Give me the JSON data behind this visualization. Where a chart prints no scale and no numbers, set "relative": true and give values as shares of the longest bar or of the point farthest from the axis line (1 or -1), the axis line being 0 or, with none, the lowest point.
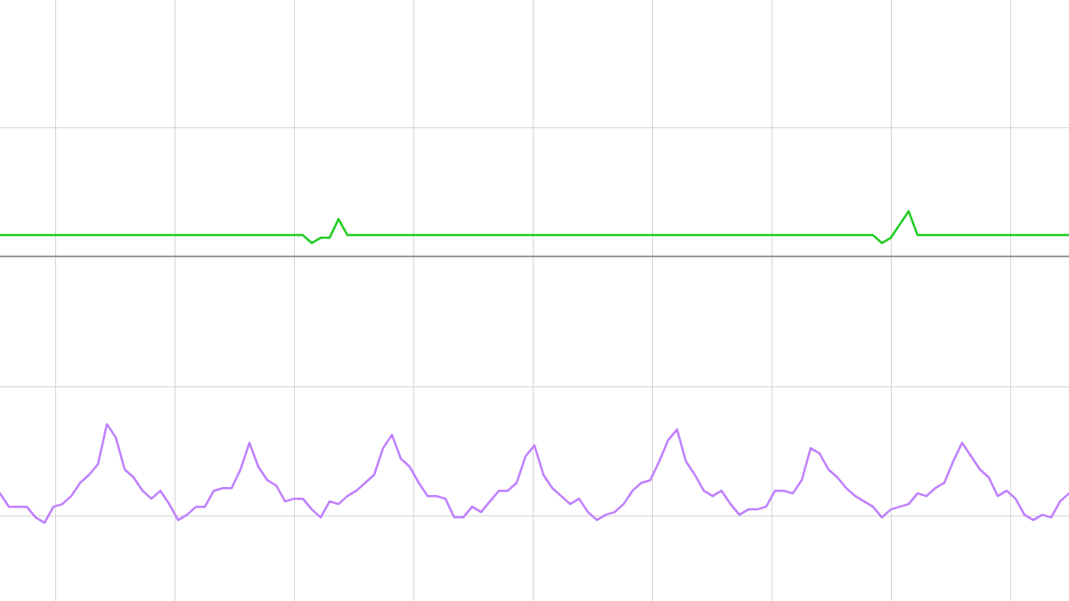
{
  "chart_data": {
    "type": "line",
    "relative": true,
    "grid": true,
    "marker": "none",
    "line_style": "solid",
    "categories": [
      null,
      null,
      null,
      null,
      null,
      null,
      null,
      null,
      null,
      null,
      null,
      null,
      null,
      null,
      null,
      null,
      null,
      null,
      null,
      null,
      null,
      null,
      null,
      null,
      null,
      null,
      null,
      null,
      null,
      null,
      null,
      null,
      null,
      null,
      null,
      null,
      null,
      null,
      null,
      null,
      null,
      null,
      null,
      null,
      null,
      null,
      null,
      null,
      null,
      null,
      null,
      null,
      null,
      null,
      null,
      null,
      null,
      null,
      null,
      null,
      null,
      null,
      null,
      null,
      null,
      null,
      null,
      null,
      null,
      null,
      null,
      null,
      null,
      null,
      null,
      null,
      null,
      null,
      null,
      null,
      null,
      null,
      null,
      null,
      null,
      null,
      null,
      null,
      null,
      null,
      null,
      null,
      null,
      null,
      null,
      null,
      null,
      null,
      null,
      null,
      null,
      null,
      null,
      null,
      null,
      null,
      null,
      null,
      null,
      null,
      null,
      null,
      null,
      null,
      null,
      null,
      null,
      null,
      null,
      null,
      null
    ],
    "series": [
      {
        "color": "#22cc22",
        "values": [
          0.08,
          0.08,
          0.08,
          0.08,
          0.08,
          0.08,
          0.08,
          0.08,
          0.08,
          0.08,
          0.08,
          0.08,
          0.08,
          0.08,
          0.08,
          0.08,
          0.08,
          0.08,
          0.08,
          0.08,
          0.08,
          0.08,
          0.08,
          0.08,
          0.08,
          0.08,
          0.08,
          0.08,
          0.08,
          0.08,
          0.08,
          0.08,
          0.08,
          0.08,
          0.08,
          0.05,
          0.07,
          0.07,
          0.14,
          0.08,
          0.08,
          0.08,
          0.08,
          0.08,
          0.08,
          0.08,
          0.08,
          0.08,
          0.08,
          0.08,
          0.08,
          0.08,
          0.08,
          0.08,
          0.08,
          0.08,
          0.08,
          0.08,
          0.08,
          0.08,
          0.08,
          0.08,
          0.08,
          0.08,
          0.08,
          0.08,
          0.08,
          0.08,
          0.08,
          0.08,
          0.08,
          0.08,
          0.08,
          0.08,
          0.08,
          0.08,
          0.08,
          0.08,
          0.08,
          0.08,
          0.08,
          0.08,
          0.08,
          0.08,
          0.08,
          0.08,
          0.08,
          0.08,
          0.08,
          0.08,
          0.08,
          0.08,
          0.08,
          0.08,
          0.08,
          0.08,
          0.08,
          0.08,
          0.08,
          0.05,
          0.07,
          0.12,
          0.17,
          0.08,
          0.08,
          0.08,
          0.08,
          0.08,
          0.08,
          0.08,
          0.08,
          0.08,
          0.08,
          0.08,
          0.08,
          0.08,
          0.08,
          0.08,
          0.08,
          0.08,
          0.08
        ]
      },
      {
        "color": "#c080ff",
        "values": [
          -0.89,
          -0.94,
          -0.94,
          -0.94,
          -0.98,
          -1,
          -0.94,
          -0.93,
          -0.9,
          -0.85,
          -0.82,
          -0.78,
          -0.63,
          -0.68,
          -0.8,
          -0.83,
          -0.88,
          -0.91,
          -0.88,
          -0.93,
          -0.99,
          -0.97,
          -0.94,
          -0.94,
          -0.88,
          -0.87,
          -0.87,
          -0.8,
          -0.7,
          -0.79,
          -0.84,
          -0.86,
          -0.92,
          -0.91,
          -0.91,
          -0.95,
          -0.98,
          -0.92,
          -0.93,
          -0.9,
          -0.88,
          -0.85,
          -0.82,
          -0.72,
          -0.67,
          -0.76,
          -0.79,
          -0.85,
          -0.9,
          -0.9,
          -0.91,
          -0.98,
          -0.98,
          -0.94,
          -0.96,
          -0.92,
          -0.88,
          -0.88,
          -0.85,
          -0.75,
          -0.71,
          -0.82,
          -0.87,
          -0.9,
          -0.93,
          -0.91,
          -0.96,
          -0.99,
          -0.97,
          -0.96,
          -0.93,
          -0.88,
          -0.85,
          -0.84,
          -0.77,
          -0.69,
          -0.65,
          -0.77,
          -0.82,
          -0.88,
          -0.9,
          -0.88,
          -0.93,
          -0.97,
          -0.95,
          -0.95,
          -0.94,
          -0.88,
          -0.88,
          -0.89,
          -0.84,
          -0.72,
          -0.74,
          -0.8,
          -0.83,
          -0.87,
          -0.9,
          -0.92,
          -0.94,
          -0.98,
          -0.95,
          -0.94,
          -0.93,
          -0.89,
          -0.9,
          -0.87,
          -0.85,
          -0.77,
          -0.7,
          -0.75,
          -0.8,
          -0.83,
          -0.9,
          -0.88,
          -0.91,
          -0.97,
          -0.99,
          -0.97,
          -0.98,
          -0.92,
          -0.89
        ]
      }
    ]
  }
}
